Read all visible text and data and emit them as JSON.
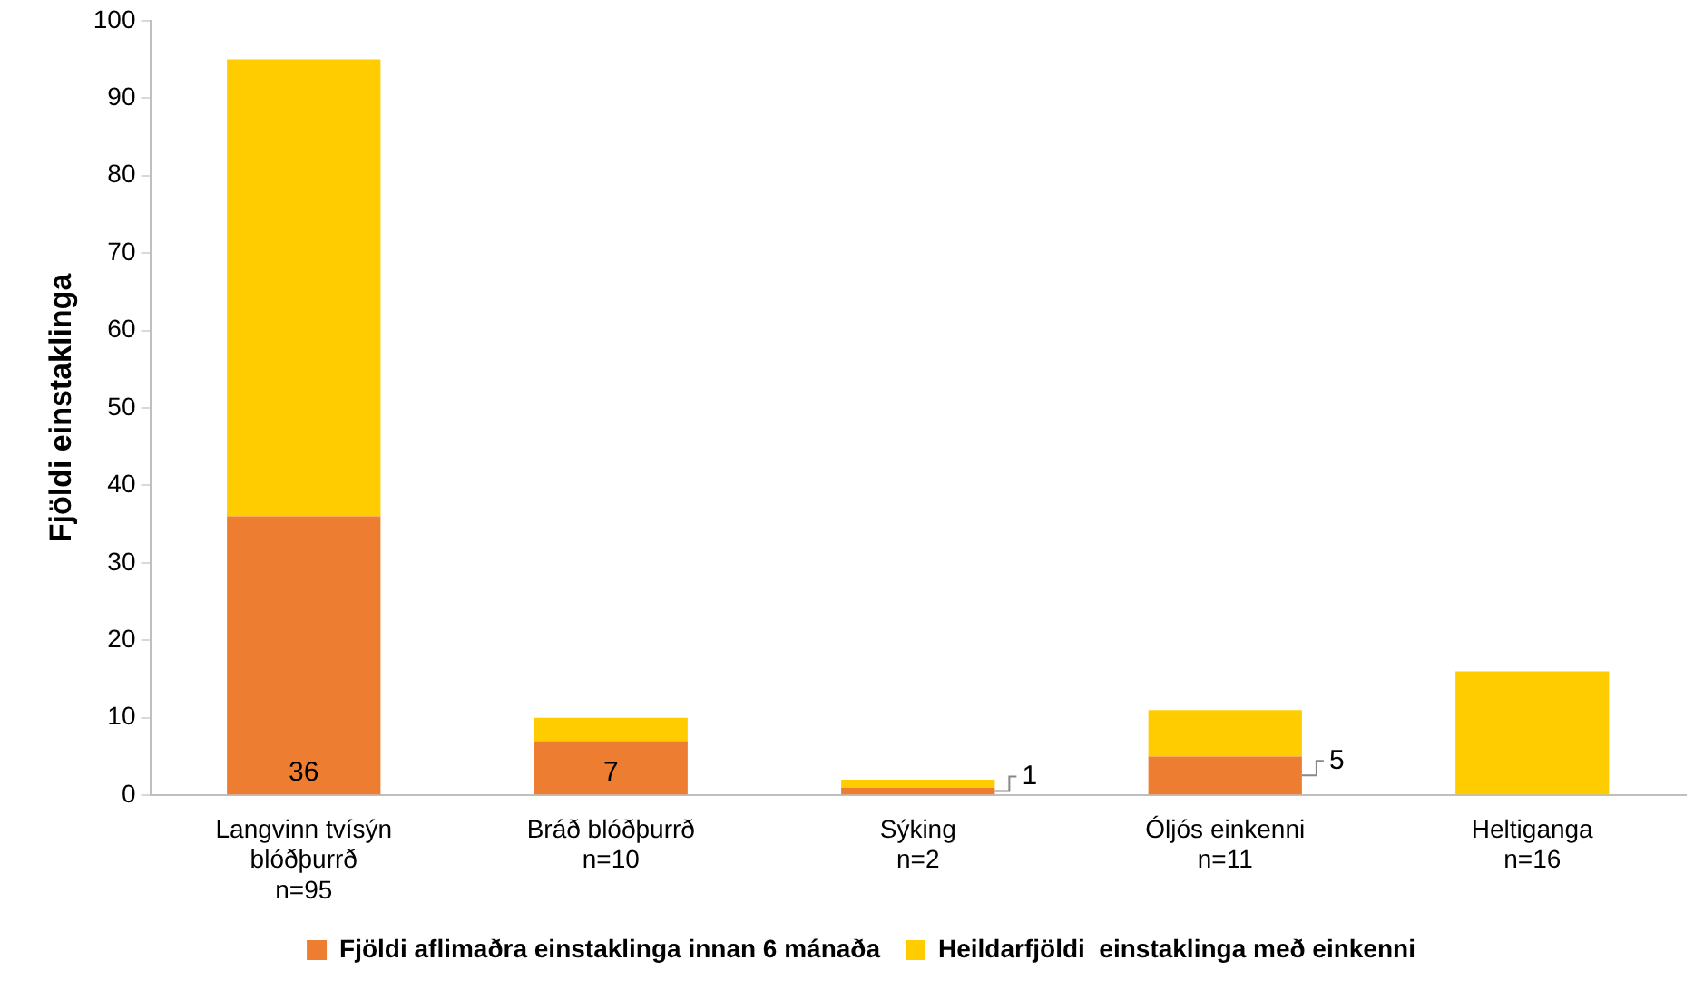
{
  "chart_data": {
    "type": "bar",
    "stacked": true,
    "ylabel": "Fjöldi einstaklinga",
    "categories": [
      "Langvinn tvísýn\nblóðþurrð\nn=95",
      "Bráð blóðþurrð\nn=10",
      "Sýking\nn=2",
      "Óljós einkenni\nn=11",
      "Heltiganga\nn=16"
    ],
    "series": [
      {
        "name": "Fjöldi aflimaðra einstaklinga innan 6 mánaða",
        "color": "#ed7d31",
        "values": [
          36,
          7,
          1,
          5,
          0
        ],
        "value_labels": [
          "36",
          "7",
          "1",
          "5",
          null
        ]
      },
      {
        "name": "Heildarfjöldi  einstaklinga með einkenni",
        "color": "#ffcc00",
        "values": [
          59,
          3,
          1,
          6,
          16
        ]
      }
    ],
    "ylim": [
      0,
      100
    ],
    "yticks": [
      0,
      10,
      20,
      30,
      40,
      50,
      60,
      70,
      80,
      90,
      100
    ],
    "grid": false,
    "legend": "bottom"
  }
}
